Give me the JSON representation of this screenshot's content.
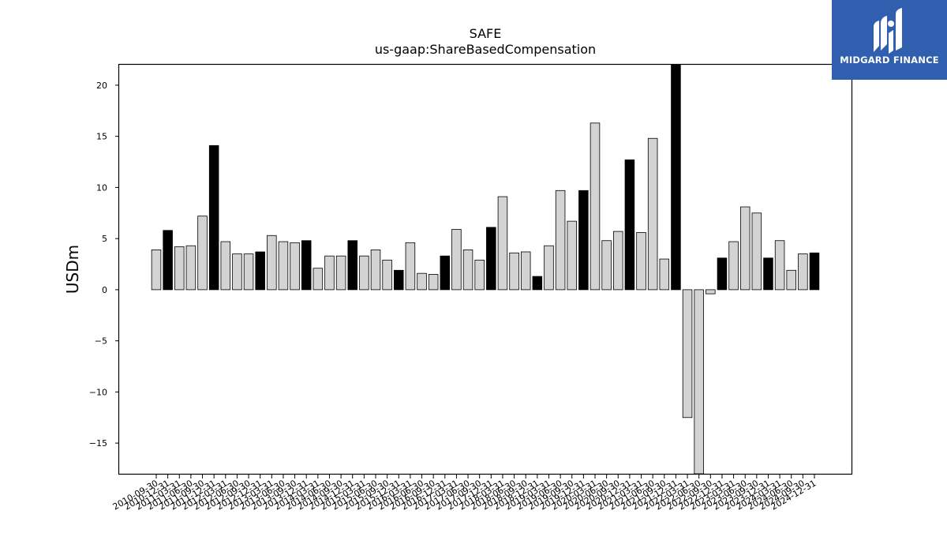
{
  "logo": {
    "text": "MIDGARD FINANCE"
  },
  "chart_data": {
    "type": "bar",
    "title": "SAFE",
    "subtitle": "us-gaap:ShareBasedCompensation",
    "xlabel": "",
    "ylabel": "USDm",
    "ylim": [
      -18,
      22
    ],
    "yticks": [
      -15,
      -10,
      -5,
      0,
      5,
      10,
      15,
      20
    ],
    "grid": false,
    "colors": {
      "q4_bar": "#000000",
      "other_bar": "#d3d3d3",
      "bar_edge": "#000000",
      "logo_bg": "#2f5fae"
    },
    "categories": [
      "2010-09-30",
      "2010-12-31",
      "2011-03-31",
      "2011-06-30",
      "2011-09-30",
      "2011-12-31",
      "2012-03-31",
      "2012-06-30",
      "2012-09-30",
      "2012-12-31",
      "2013-03-31",
      "2013-06-30",
      "2013-09-30",
      "2013-12-31",
      "2014-03-31",
      "2014-06-30",
      "2014-09-30",
      "2014-12-31",
      "2015-03-31",
      "2015-06-30",
      "2015-09-30",
      "2015-12-31",
      "2016-03-31",
      "2016-06-30",
      "2016-09-30",
      "2016-12-31",
      "2017-03-31",
      "2017-06-30",
      "2017-09-30",
      "2017-12-31",
      "2018-03-31",
      "2018-06-30",
      "2018-09-30",
      "2018-12-31",
      "2019-03-31",
      "2019-06-30",
      "2019-09-30",
      "2019-12-31",
      "2020-03-31",
      "2020-06-30",
      "2020-09-30",
      "2020-12-31",
      "2021-03-31",
      "2021-06-30",
      "2021-09-30",
      "2021-12-31",
      "2022-03-31",
      "2022-06-30",
      "2022-09-30",
      "2022-12-31",
      "2023-03-31",
      "2023-06-30",
      "2023-09-30",
      "2023-12-31",
      "2024-03-31",
      "2024-06-30",
      "2024-09-30",
      "2024-12-31"
    ],
    "values": [
      3.9,
      5.8,
      4.2,
      4.3,
      7.2,
      14.1,
      4.7,
      3.5,
      3.5,
      3.7,
      5.3,
      4.7,
      4.6,
      4.8,
      2.1,
      3.3,
      3.3,
      4.8,
      3.3,
      3.9,
      2.9,
      1.9,
      4.6,
      1.6,
      1.5,
      3.3,
      5.9,
      3.9,
      2.9,
      6.1,
      9.1,
      3.6,
      3.7,
      1.3,
      4.3,
      9.7,
      6.7,
      9.7,
      16.3,
      4.8,
      5.7,
      12.7,
      5.6,
      14.8,
      3.0,
      22.0,
      -12.5,
      -18.0,
      -0.4,
      3.1,
      4.7,
      8.1,
      7.5,
      3.1,
      4.8,
      1.9,
      3.5,
      3.6
    ]
  }
}
